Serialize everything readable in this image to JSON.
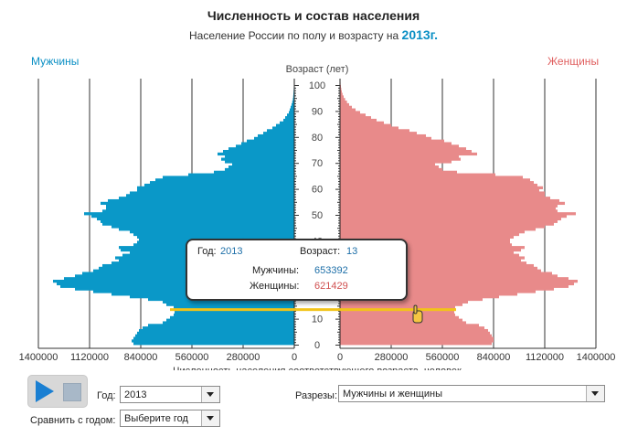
{
  "header": {
    "title": "Численность и состав населения",
    "subtitle_prefix": "Население России по полу и возрасту на",
    "subtitle_year": "2013г."
  },
  "legend": {
    "men": "Мужчины",
    "women": "Женщины"
  },
  "colors": {
    "men": "#0a98c8",
    "women": "#e88a8a",
    "highlight": "#f2c318",
    "men_text": "#0a8fc4",
    "women_text": "#e06060"
  },
  "chart_data": {
    "type": "bar",
    "orientation": "horizontal-pyramid",
    "age_axis_label": "Возраст (лет)",
    "age_ticks": [
      0,
      10,
      20,
      30,
      40,
      50,
      60,
      70,
      80,
      90,
      100
    ],
    "age_range": [
      0,
      100
    ],
    "xlabel": "Численность населения соответствующего возраста,  человек",
    "x_ticks_men": [
      "1400000",
      "1120000",
      "840000",
      "560000",
      "280000",
      "0"
    ],
    "x_ticks_women": [
      "0",
      "280000",
      "560000",
      "840000",
      "1120000",
      "1400000"
    ],
    "xlim": [
      0,
      1400000
    ],
    "grid": true,
    "highlighted_age": 13,
    "series": [
      {
        "name": "Мужчины",
        "values": [
          880000,
          890000,
          880000,
          870000,
          860000,
          850000,
          830000,
          800000,
          720000,
          700000,
          680000,
          660000,
          655000,
          653392,
          660000,
          700000,
          720000,
          800000,
          900000,
          1000000,
          1100000,
          1200000,
          1280000,
          1300000,
          1320000,
          1260000,
          1200000,
          1160000,
          1100000,
          1070000,
          1050000,
          1000000,
          960000,
          980000,
          940000,
          900000,
          950000,
          960000,
          880000,
          860000,
          850000,
          860000,
          880000,
          900000,
          960000,
          1000000,
          1050000,
          1060000,
          1080000,
          1110000,
          1150000,
          1050000,
          1030000,
          1030000,
          1060000,
          1020000,
          960000,
          920000,
          900000,
          860000,
          860000,
          820000,
          790000,
          760000,
          720000,
          580000,
          440000,
          380000,
          360000,
          340000,
          380000,
          400000,
          380000,
          420000,
          390000,
          360000,
          320000,
          290000,
          260000,
          220000,
          200000,
          170000,
          150000,
          120000,
          100000,
          80000,
          60000,
          50000,
          40000,
          30000,
          25000,
          20000,
          15000,
          11000,
          8000,
          6000,
          5000,
          4000,
          3000,
          2000,
          1500
        ]
      },
      {
        "name": "Женщины",
        "values": [
          830000,
          840000,
          840000,
          830000,
          820000,
          810000,
          790000,
          760000,
          690000,
          670000,
          650000,
          630000,
          625000,
          621429,
          630000,
          670000,
          700000,
          780000,
          870000,
          970000,
          1070000,
          1170000,
          1250000,
          1280000,
          1300000,
          1250000,
          1190000,
          1160000,
          1100000,
          1080000,
          1060000,
          1020000,
          990000,
          1010000,
          980000,
          950000,
          990000,
          1010000,
          940000,
          930000,
          930000,
          950000,
          980000,
          1010000,
          1070000,
          1120000,
          1170000,
          1190000,
          1210000,
          1240000,
          1290000,
          1190000,
          1180000,
          1190000,
          1230000,
          1200000,
          1150000,
          1120000,
          1120000,
          1090000,
          1110000,
          1080000,
          1060000,
          1040000,
          1000000,
          850000,
          640000,
          560000,
          540000,
          520000,
          610000,
          660000,
          650000,
          750000,
          720000,
          690000,
          650000,
          610000,
          570000,
          500000,
          470000,
          420000,
          380000,
          320000,
          280000,
          240000,
          200000,
          170000,
          140000,
          110000,
          85000,
          65000,
          50000,
          38000,
          28000,
          20000,
          14000,
          10000,
          7000,
          5000,
          3000
        ]
      }
    ]
  },
  "tooltip": {
    "year_label": "Год:",
    "year_value": "2013",
    "age_label": "Возраст:",
    "age_value": "13",
    "men_label": "Мужчины:",
    "men_value": "653392",
    "women_label": "Женщины:",
    "women_value": "621429"
  },
  "controls": {
    "year_label": "Год:",
    "year_value": "2013",
    "compare_label": "Сравнить с годом:",
    "compare_value": "Выберите год",
    "sections_label": "Разрезы:",
    "sections_value": "Мужчины и женщины"
  }
}
